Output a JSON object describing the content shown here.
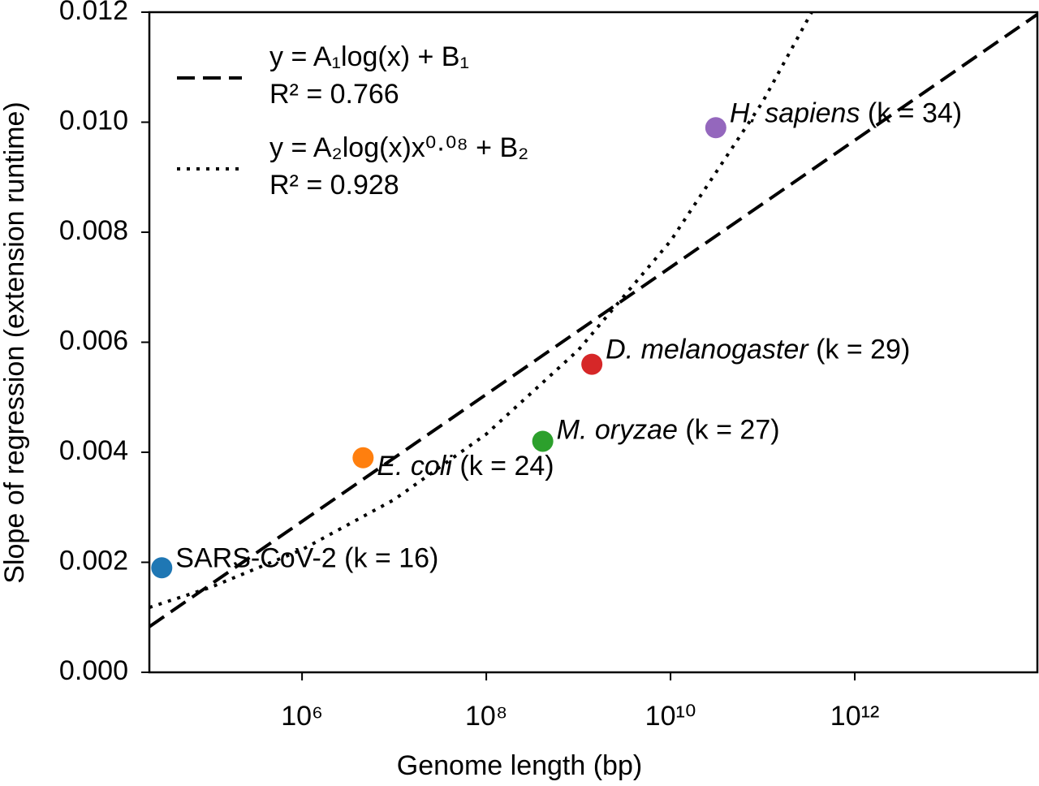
{
  "chart_data": {
    "type": "scatter",
    "xlabel": "Genome length (bp)",
    "ylabel": "Slope of regression (extension runtime)",
    "xscale": "log",
    "xlim": [
      22000,
      96000000000000
    ],
    "ylim": [
      0,
      0.012
    ],
    "xticks": [
      {
        "value": 1000000,
        "label": "10⁶"
      },
      {
        "value": 100000000,
        "label": "10⁸"
      },
      {
        "value": 10000000000,
        "label": "10¹⁰"
      },
      {
        "value": 1000000000000,
        "label": "10¹²"
      }
    ],
    "yticks": [
      {
        "value": 0,
        "label": "0.000"
      },
      {
        "value": 0.002,
        "label": "0.002"
      },
      {
        "value": 0.004,
        "label": "0.004"
      },
      {
        "value": 0.006,
        "label": "0.006"
      },
      {
        "value": 0.008,
        "label": "0.008"
      },
      {
        "value": 0.01,
        "label": "0.010"
      },
      {
        "value": 0.012,
        "label": "0.012"
      }
    ],
    "legend": "upper left",
    "series": [
      {
        "name": "SARS-CoV-2",
        "label": "(k = 16)",
        "italic": false,
        "color": "#1f77b4",
        "x": [
          30000
        ],
        "values": [
          0.0019
        ]
      },
      {
        "name": "E. coli",
        "label": "(k = 24)",
        "italic": true,
        "color": "#ff7f0e",
        "x": [
          4600000
        ],
        "values": [
          0.0039
        ]
      },
      {
        "name": "M. oryzae",
        "label": "(k = 27)",
        "italic": true,
        "color": "#2ca02c",
        "x": [
          410000000
        ],
        "values": [
          0.0042
        ]
      },
      {
        "name": "D. melanogaster",
        "label": "(k = 29)",
        "italic": true,
        "color": "#d62728",
        "x": [
          1400000000
        ],
        "values": [
          0.0056
        ]
      },
      {
        "name": "H. sapiens",
        "label": "(k = 34)",
        "italic": true,
        "color": "#9467bd",
        "x": [
          31000000000
        ],
        "values": [
          0.0099
        ]
      }
    ],
    "fits": [
      {
        "name": "y = A₁log(x) + B₁",
        "r2": "R² = 0.766",
        "style": "dashed",
        "color": "#000000",
        "x": [
          22000,
          96000000000000
        ],
        "values": [
          0.00083,
          0.01196
        ]
      },
      {
        "name": "y = A₂log(x)x⁰·⁰⁸ + B₂",
        "r2": "R² = 0.928",
        "style": "dotted",
        "color": "#000000",
        "x": [
          22000,
          100000,
          1000000,
          10000000,
          100000000,
          1000000000,
          10000000000,
          100000000000,
          340000000000
        ],
        "values": [
          0.00118,
          0.00154,
          0.00223,
          0.00314,
          0.00433,
          0.00586,
          0.00784,
          0.01037,
          0.012
        ]
      }
    ]
  }
}
